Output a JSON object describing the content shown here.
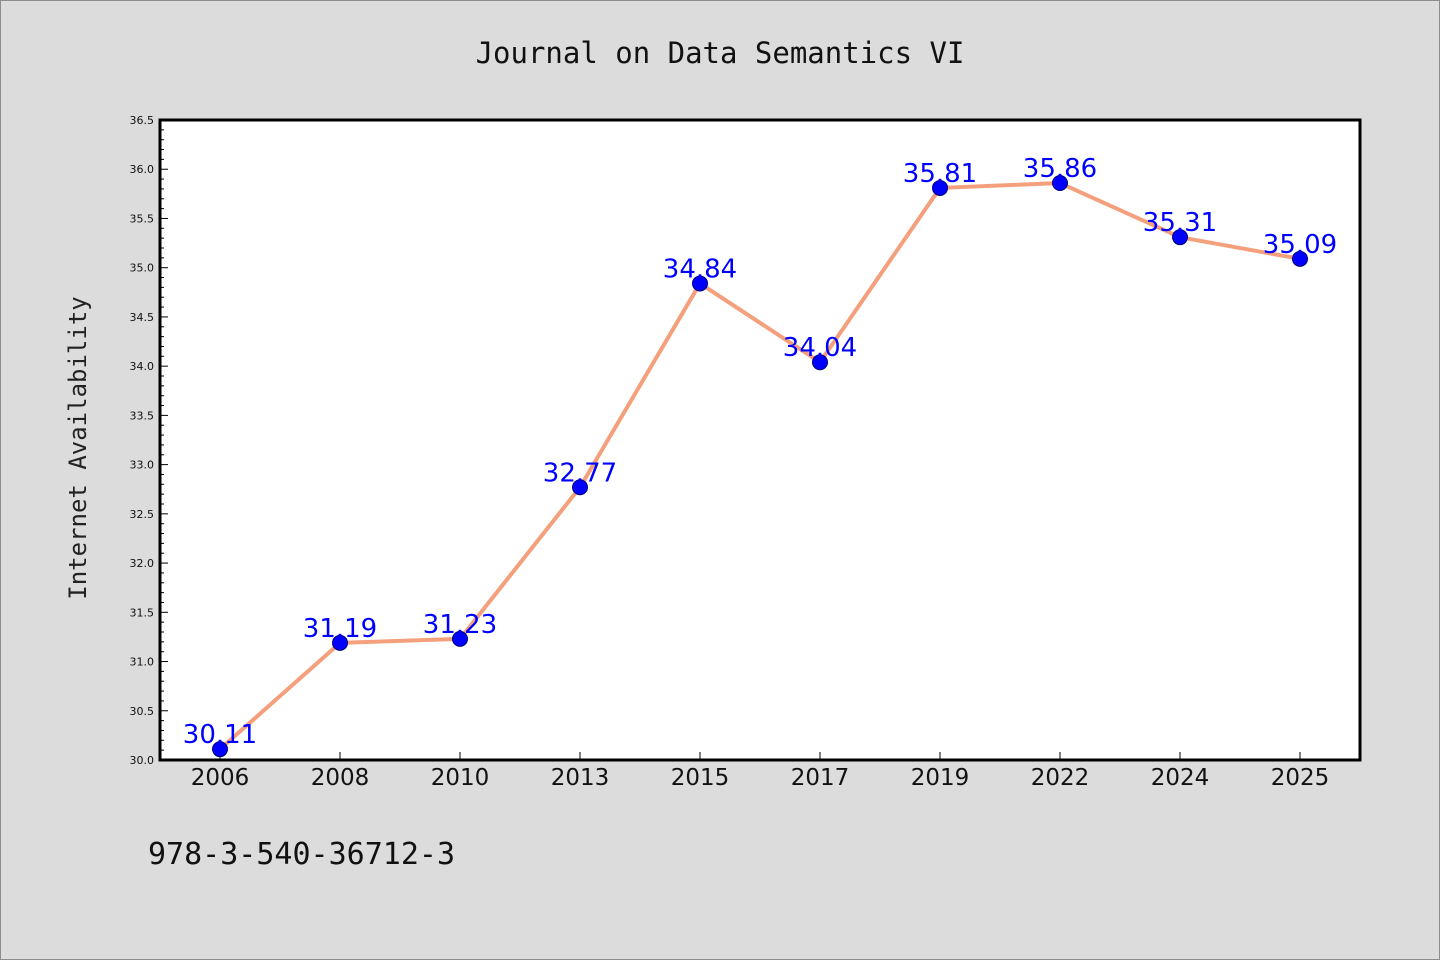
{
  "chart_data": {
    "type": "line",
    "title": "Journal on Data Semantics VI",
    "xlabel": "",
    "ylabel": "Internet Availability",
    "categories": [
      "2006",
      "2008",
      "2010",
      "2013",
      "2015",
      "2017",
      "2019",
      "2022",
      "2024",
      "2025"
    ],
    "values": [
      30.11,
      31.19,
      31.23,
      32.77,
      34.84,
      34.04,
      35.81,
      35.86,
      35.31,
      35.09
    ],
    "data_labels": [
      "30.11",
      "31.19",
      "31.23",
      "32.77",
      "34.84",
      "34.04",
      "35.81",
      "35.86",
      "35.31",
      "35.09"
    ],
    "ylim": [
      30.0,
      36.5
    ],
    "yticks": [
      "30.0",
      "30.5",
      "31.0",
      "31.5",
      "32.0",
      "32.5",
      "33.0",
      "33.5",
      "34.0",
      "34.5",
      "35.0",
      "35.5",
      "36.0",
      "36.5"
    ],
    "grid": false,
    "legend": "none",
    "line_color": "#f4a07d",
    "marker_color": "#0000ff",
    "label_color": "#0000ff"
  },
  "footer_text": "978-3-540-36712-3"
}
